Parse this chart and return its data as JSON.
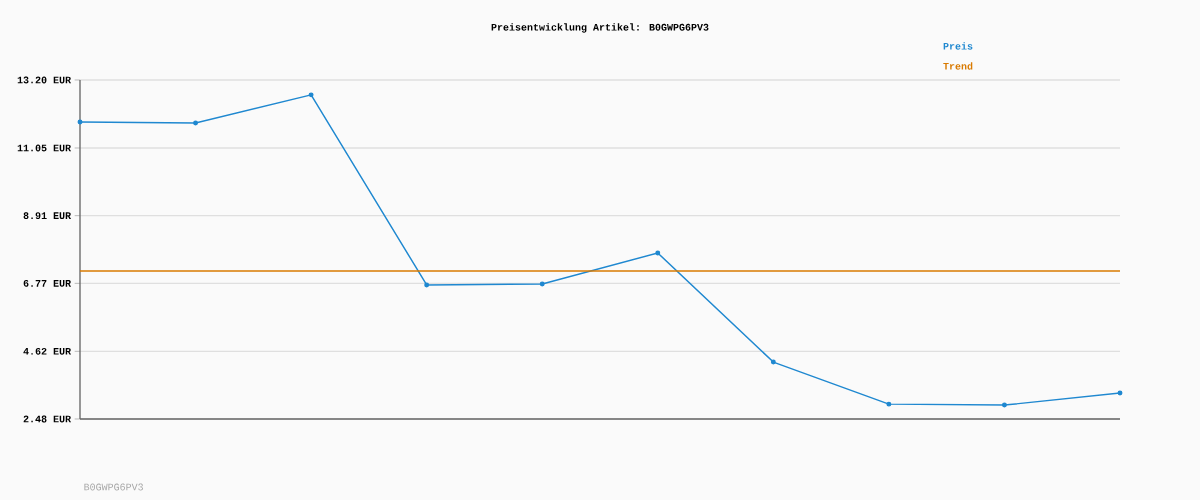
{
  "chart_data": {
    "type": "line",
    "title": "Preisentwicklung Artikel: B0GWPG6PV3",
    "categories": [
      null,
      null,
      null,
      null,
      null,
      null,
      null,
      null,
      null,
      null
    ],
    "series": [
      {
        "name": "Preis",
        "color": "#1f88d0",
        "marker": "circle",
        "values": [
          11.87,
          11.84,
          12.73,
          6.72,
          6.75,
          7.73,
          4.28,
          2.95,
          2.92,
          3.3
        ]
      },
      {
        "name": "Trend",
        "color": "#d97a00",
        "values": [
          7.16,
          7.16,
          7.16,
          7.16,
          7.16,
          7.16,
          7.16,
          7.16,
          7.16,
          7.16
        ]
      }
    ],
    "ylim": [
      2.48,
      13.2
    ],
    "yticks": [
      {
        "value": 2.48,
        "label": "2.48 EUR"
      },
      {
        "value": 4.62,
        "label": "4.62 EUR"
      },
      {
        "value": 6.77,
        "label": "6.77 EUR"
      },
      {
        "value": 8.91,
        "label": "8.91 EUR"
      },
      {
        "value": 11.05,
        "label": "11.05 EUR"
      },
      {
        "value": 13.2,
        "label": "13.20 EUR"
      }
    ],
    "grid": "y",
    "legend": "top right",
    "annotations": [
      "B0GWPG6PV3"
    ]
  }
}
